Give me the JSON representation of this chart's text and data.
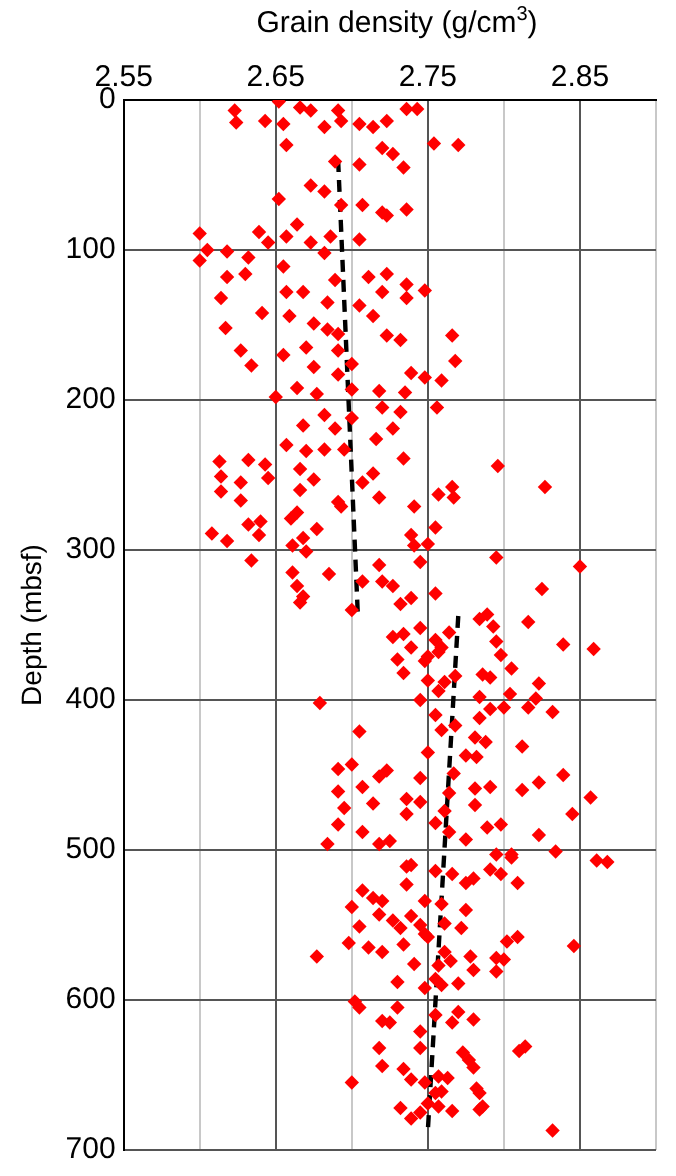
{
  "chart_data": {
    "type": "scatter",
    "xlabel": "Grain density (g/cm$^{3}$)",
    "ylabel": "Depth (mbsf)",
    "xlim": [
      2.55,
      2.9
    ],
    "xticks": [
      2.55,
      {
        "value": 2.6,
        "label": null
      },
      2.65,
      {
        "value": 2.7,
        "label": null
      },
      2.75,
      {
        "value": 2.8,
        "label": null
      },
      2.85,
      {
        "value": 2.9,
        "label": null
      }
    ],
    "ylim": [
      700,
      0
    ],
    "yticks": [
      0,
      100,
      200,
      300,
      400,
      500,
      600,
      700
    ],
    "grid": true,
    "legend": false,
    "series": [
      {
        "type": "scatter",
        "color": "#ff0000",
        "marker": "diamond",
        "x": [
          2.623,
          2.624,
          2.643,
          2.652,
          2.655,
          2.657,
          2.666,
          2.673,
          2.682,
          2.691,
          2.693,
          2.705,
          2.714,
          2.723,
          2.736,
          2.743,
          2.754,
          2.77,
          2.72,
          2.727,
          2.689,
          2.705,
          2.734,
          2.673,
          2.682,
          2.652,
          2.693,
          2.707,
          2.72,
          2.736,
          2.664,
          2.639,
          2.6,
          2.605,
          2.6,
          2.618,
          2.632,
          2.645,
          2.657,
          2.673,
          2.682,
          2.686,
          2.705,
          2.723,
          2.618,
          2.63,
          2.655,
          2.689,
          2.711,
          2.723,
          2.736,
          2.614,
          2.617,
          2.641,
          2.627,
          2.634,
          2.657,
          2.659,
          2.668,
          2.684,
          2.675,
          2.684,
          2.691,
          2.705,
          2.714,
          2.72,
          2.736,
          2.748,
          2.723,
          2.732,
          2.766,
          2.768,
          2.655,
          2.67,
          2.675,
          2.691,
          2.7,
          2.739,
          2.748,
          2.759,
          2.65,
          2.664,
          2.677,
          2.691,
          2.7,
          2.718,
          2.735,
          2.72,
          2.732,
          2.756,
          2.668,
          2.682,
          2.689,
          2.7,
          2.716,
          2.727,
          2.657,
          2.67,
          2.682,
          2.695,
          2.734,
          2.613,
          2.614,
          2.632,
          2.643,
          2.645,
          2.627,
          2.614,
          2.627,
          2.666,
          2.666,
          2.675,
          2.707,
          2.714,
          2.718,
          2.691,
          2.741,
          2.757,
          2.766,
          2.767,
          2.796,
          2.827,
          2.632,
          2.64,
          2.639,
          2.608,
          2.618,
          2.66,
          2.664,
          2.677,
          2.668,
          2.661,
          2.67,
          2.693,
          2.739,
          2.755,
          2.741,
          2.75,
          2.795,
          2.634,
          2.85,
          2.661,
          2.664,
          2.668,
          2.666,
          2.685,
          2.7,
          2.707,
          2.718,
          2.72,
          2.727,
          2.732,
          2.739,
          2.745,
          2.755,
          2.825,
          2.784,
          2.789,
          2.793,
          2.816,
          2.727,
          2.734,
          2.739,
          2.745,
          2.755,
          2.759,
          2.764,
          2.75,
          2.757,
          2.748,
          2.73,
          2.734,
          2.75,
          2.761,
          2.768,
          2.757,
          2.795,
          2.798,
          2.786,
          2.791,
          2.839,
          2.859,
          2.805,
          2.823,
          2.784,
          2.804,
          2.821,
          2.816,
          2.832,
          2.745,
          2.8,
          2.679,
          2.755,
          2.768,
          2.784,
          2.791,
          2.705,
          2.759,
          2.781,
          2.788,
          2.812,
          2.75,
          2.775,
          2.782,
          2.691,
          2.7,
          2.718,
          2.723,
          2.745,
          2.767,
          2.707,
          2.691,
          2.736,
          2.764,
          2.781,
          2.791,
          2.812,
          2.823,
          2.839,
          2.857,
          2.714,
          2.695,
          2.736,
          2.745,
          2.761,
          2.781,
          2.845,
          2.691,
          2.707,
          2.725,
          2.718,
          2.755,
          2.764,
          2.775,
          2.789,
          2.798,
          2.823,
          2.684,
          2.834,
          2.795,
          2.805,
          2.861,
          2.868,
          2.736,
          2.739,
          2.755,
          2.766,
          2.775,
          2.78,
          2.791,
          2.798,
          2.805,
          2.809,
          2.707,
          2.714,
          2.72,
          2.7,
          2.736,
          2.748,
          2.759,
          2.775,
          2.705,
          2.718,
          2.727,
          2.732,
          2.739,
          2.745,
          2.748,
          2.761,
          2.772,
          2.698,
          2.711,
          2.72,
          2.734,
          2.75,
          2.761,
          2.802,
          2.809,
          2.846,
          2.677,
          2.741,
          2.757,
          2.765,
          2.778,
          2.78,
          2.795,
          2.8,
          2.795,
          2.73,
          2.748,
          2.755,
          2.759,
          2.77,
          2.702,
          2.705,
          2.72,
          2.725,
          2.73,
          2.745,
          2.755,
          2.766,
          2.77,
          2.78,
          2.745,
          2.718,
          2.72,
          2.734,
          2.739,
          2.757,
          2.763,
          2.773,
          2.777,
          2.78,
          2.81,
          2.814,
          2.7,
          2.748,
          2.755,
          2.759,
          2.782,
          2.784,
          2.732,
          2.739,
          2.745,
          2.75,
          2.757,
          2.766,
          2.784,
          2.786,
          2.832
        ],
        "values": [
          7,
          15,
          14,
          1,
          16,
          30,
          5,
          7,
          18,
          7,
          14,
          16,
          18,
          14,
          6,
          6,
          29,
          30,
          32,
          36,
          41,
          43,
          45,
          57,
          61,
          66,
          70,
          70,
          75,
          73,
          83,
          88,
          89,
          100,
          107,
          101,
          105,
          95,
          91,
          95,
          102,
          91,
          93,
          77,
          118,
          116,
          111,
          120,
          118,
          116,
          123,
          132,
          152,
          142,
          167,
          177,
          128,
          144,
          128,
          135,
          149,
          153,
          156,
          137,
          144,
          128,
          132,
          127,
          157,
          160,
          157,
          174,
          170,
          165,
          178,
          167,
          176,
          182,
          185,
          187,
          198,
          192,
          196,
          183,
          193,
          194,
          195,
          205,
          208,
          205,
          217,
          210,
          219,
          212,
          226,
          219,
          230,
          234,
          233,
          233,
          239,
          241,
          251,
          240,
          243,
          252,
          255,
          261,
          267,
          246,
          260,
          253,
          255,
          249,
          265,
          268,
          271,
          263,
          258,
          265,
          244,
          258,
          283,
          281,
          290,
          289,
          294,
          279,
          275,
          286,
          292,
          297,
          301,
          271,
          290,
          285,
          297,
          296,
          305,
          307,
          311,
          315,
          324,
          331,
          335,
          316,
          340,
          321,
          310,
          321,
          324,
          336,
          332,
          308,
          329,
          326,
          346,
          343,
          351,
          348,
          358,
          356,
          365,
          352,
          360,
          365,
          355,
          371,
          368,
          374,
          373,
          382,
          387,
          388,
          384,
          394,
          361,
          370,
          383,
          385,
          363,
          366,
          379,
          389,
          398,
          396,
          399,
          405,
          408,
          400,
          405,
          402,
          410,
          417,
          412,
          406,
          421,
          420,
          425,
          428,
          431,
          435,
          437,
          438,
          446,
          443,
          451,
          447,
          452,
          449,
          458,
          461,
          466,
          462,
          459,
          458,
          460,
          455,
          450,
          465,
          469,
          472,
          476,
          468,
          474,
          470,
          476,
          483,
          488,
          494,
          496,
          482,
          488,
          493,
          485,
          483,
          490,
          496,
          501,
          503,
          503,
          507,
          508,
          511,
          510,
          514,
          516,
          522,
          519,
          513,
          516,
          505,
          522,
          527,
          532,
          534,
          538,
          523,
          534,
          536,
          540,
          551,
          543,
          547,
          552,
          544,
          550,
          556,
          549,
          552,
          562,
          565,
          568,
          563,
          558,
          568,
          561,
          558,
          564,
          571,
          576,
          577,
          574,
          571,
          580,
          572,
          573,
          581,
          588,
          592,
          586,
          590,
          589,
          601,
          605,
          614,
          615,
          605,
          621,
          610,
          615,
          608,
          613,
          632,
          632,
          644,
          646,
          653,
          651,
          652,
          635,
          640,
          645,
          634,
          631,
          655,
          655,
          662,
          661,
          659,
          662,
          672,
          679,
          675,
          669,
          671,
          674,
          673,
          671,
          687
        ]
      },
      {
        "type": "line",
        "color": "#000000",
        "line_style": "dashed",
        "x": [
          2.691,
          2.704
        ],
        "values": [
          40,
          344
        ]
      },
      {
        "type": "line",
        "color": "#000000",
        "line_style": "dashed",
        "x": [
          2.77,
          2.75
        ],
        "values": [
          344,
          687
        ]
      }
    ]
  }
}
